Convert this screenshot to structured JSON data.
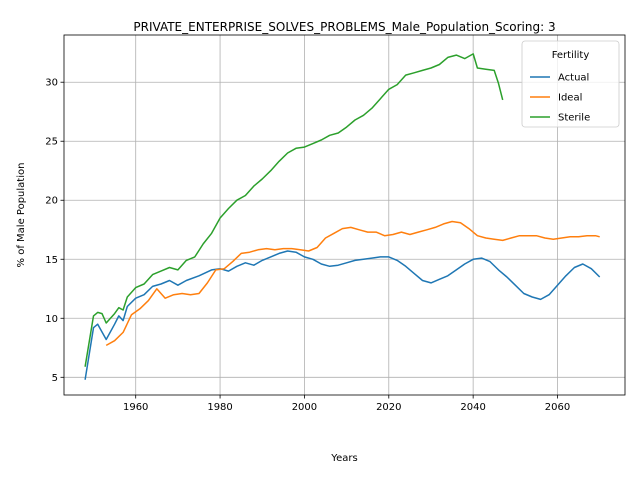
{
  "chart_data": {
    "type": "line",
    "title": "PRIVATE_ENTERPRISE_SOLVES_PROBLEMS_Male_Population_Scoring: 3",
    "xlabel": "Years",
    "ylabel": "% of Male Population",
    "xlim": [
      1943,
      2076
    ],
    "ylim": [
      3.5,
      34
    ],
    "xticks": [
      1960,
      1980,
      2000,
      2020,
      2040,
      2060
    ],
    "yticks": [
      5,
      10,
      15,
      20,
      25,
      30
    ],
    "grid": true,
    "legend": {
      "title": "Fertility",
      "placement": "top-right"
    },
    "series": [
      {
        "name": "Actual",
        "color": "#1f77b4",
        "x": [
          1948,
          1950,
          1951,
          1953,
          1955,
          1956,
          1957,
          1958,
          1960,
          1962,
          1964,
          1966,
          1968,
          1970,
          1972,
          1975,
          1978,
          1980,
          1982,
          1984,
          1986,
          1988,
          1990,
          1992,
          1994,
          1996,
          1998,
          2000,
          2002,
          2004,
          2006,
          2008,
          2010,
          2012,
          2014,
          2016,
          2018,
          2020,
          2022,
          2024,
          2026,
          2028,
          2030,
          2032,
          2034,
          2036,
          2038,
          2040,
          2042,
          2044,
          2046,
          2048,
          2050,
          2052,
          2054,
          2056,
          2058,
          2060,
          2062,
          2064,
          2066,
          2068,
          2070
        ],
        "y": [
          4.8,
          9.2,
          9.5,
          8.2,
          9.5,
          10.2,
          9.8,
          11.0,
          11.7,
          12.0,
          12.7,
          12.9,
          13.2,
          12.8,
          13.2,
          13.6,
          14.1,
          14.2,
          14.0,
          14.4,
          14.7,
          14.5,
          14.9,
          15.2,
          15.5,
          15.7,
          15.6,
          15.2,
          15.0,
          14.6,
          14.4,
          14.5,
          14.7,
          14.9,
          15.0,
          15.1,
          15.2,
          15.2,
          14.9,
          14.4,
          13.8,
          13.2,
          13.0,
          13.3,
          13.6,
          14.1,
          14.6,
          15.0,
          15.1,
          14.8,
          14.1,
          13.5,
          12.8,
          12.1,
          11.8,
          11.6,
          12.0,
          12.8,
          13.6,
          14.3,
          14.6,
          14.2,
          13.5
        ]
      },
      {
        "name": "Ideal",
        "color": "#ff7f0e",
        "x": [
          1953,
          1955,
          1957,
          1959,
          1961,
          1963,
          1965,
          1967,
          1969,
          1971,
          1973,
          1975,
          1977,
          1979,
          1981,
          1983,
          1985,
          1987,
          1989,
          1991,
          1993,
          1995,
          1997,
          1999,
          2001,
          2003,
          2005,
          2007,
          2009,
          2011,
          2013,
          2015,
          2017,
          2019,
          2021,
          2023,
          2025,
          2027,
          2029,
          2031,
          2033,
          2035,
          2037,
          2039,
          2041,
          2043,
          2045,
          2047,
          2049,
          2051,
          2053,
          2055,
          2057,
          2059,
          2061,
          2063,
          2065,
          2067,
          2069,
          2070
        ],
        "y": [
          7.7,
          8.1,
          8.8,
          10.3,
          10.8,
          11.5,
          12.5,
          11.7,
          12.0,
          12.1,
          12.0,
          12.1,
          13.0,
          14.1,
          14.2,
          14.8,
          15.5,
          15.6,
          15.8,
          15.9,
          15.8,
          15.9,
          15.9,
          15.8,
          15.7,
          16.0,
          16.8,
          17.2,
          17.6,
          17.7,
          17.5,
          17.3,
          17.3,
          17.0,
          17.1,
          17.3,
          17.1,
          17.3,
          17.5,
          17.7,
          18.0,
          18.2,
          18.1,
          17.6,
          17.0,
          16.8,
          16.7,
          16.6,
          16.8,
          17.0,
          17.0,
          17.0,
          16.8,
          16.7,
          16.8,
          16.9,
          16.9,
          17.0,
          17.0,
          16.9
        ]
      },
      {
        "name": "Sterile",
        "color": "#2ca02c",
        "x": [
          1948,
          1950,
          1951,
          1952,
          1953,
          1955,
          1956,
          1957,
          1958,
          1960,
          1962,
          1964,
          1966,
          1968,
          1970,
          1972,
          1974,
          1976,
          1978,
          1980,
          1982,
          1984,
          1986,
          1988,
          1990,
          1992,
          1994,
          1996,
          1998,
          2000,
          2002,
          2004,
          2006,
          2008,
          2010,
          2012,
          2014,
          2016,
          2018,
          2020,
          2022,
          2024,
          2026,
          2028,
          2030,
          2032,
          2034,
          2036,
          2038,
          2040,
          2041,
          2043,
          2045,
          2046,
          2047
        ],
        "y": [
          5.9,
          10.2,
          10.5,
          10.4,
          9.6,
          10.4,
          10.9,
          10.7,
          11.8,
          12.6,
          12.9,
          13.7,
          14.0,
          14.3,
          14.1,
          14.9,
          15.2,
          16.3,
          17.2,
          18.5,
          19.3,
          20.0,
          20.4,
          21.2,
          21.8,
          22.5,
          23.3,
          24.0,
          24.4,
          24.5,
          24.8,
          25.1,
          25.5,
          25.7,
          26.2,
          26.8,
          27.2,
          27.8,
          28.6,
          29.4,
          29.8,
          30.6,
          30.8,
          31.0,
          31.2,
          31.5,
          32.1,
          32.3,
          32.0,
          32.4,
          31.2,
          31.1,
          31.0,
          29.9,
          28.5
        ]
      }
    ]
  }
}
